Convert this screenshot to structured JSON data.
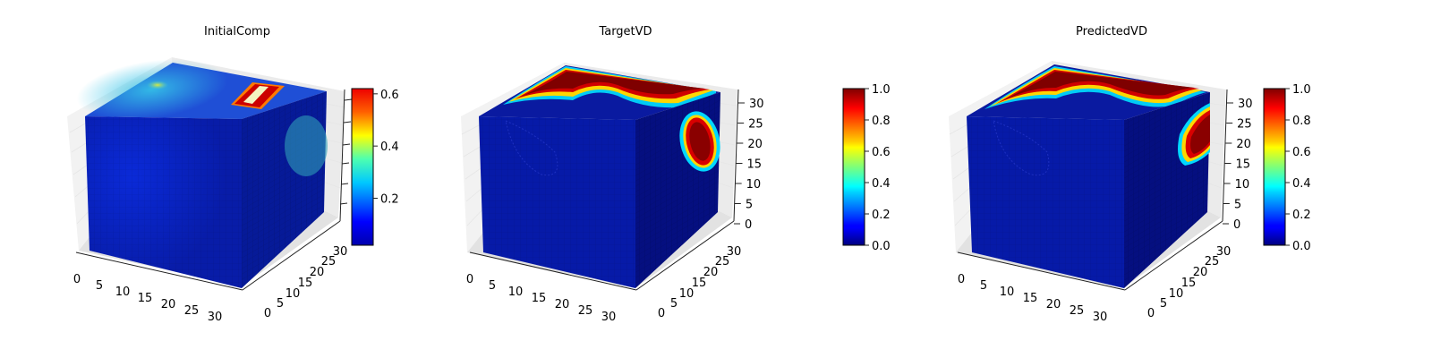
{
  "chart_data": [
    {
      "type": "voxel-3d",
      "title": "InitialComp",
      "x_ticks": [
        "0",
        "5",
        "10",
        "15",
        "20",
        "25",
        "30"
      ],
      "y_ticks": [
        "0",
        "5",
        "10",
        "15",
        "20",
        "25",
        "30"
      ],
      "z_ticks": [],
      "colormap": "jet",
      "colorbar": {
        "min": 0.02,
        "max": 0.62,
        "ticks": [
          "0.2",
          "0.4",
          "0.6"
        ],
        "tick_values": [
          0.2,
          0.4,
          0.6
        ]
      }
    },
    {
      "type": "voxel-3d",
      "title": "TargetVD",
      "x_ticks": [
        "0",
        "5",
        "10",
        "15",
        "20",
        "25",
        "30"
      ],
      "y_ticks": [
        "0",
        "5",
        "10",
        "15",
        "20",
        "25",
        "30"
      ],
      "z_ticks": [
        "0",
        "5",
        "10",
        "15",
        "20",
        "25",
        "30"
      ],
      "colormap": "jet",
      "colorbar": {
        "min": 0.0,
        "max": 1.0,
        "ticks": [
          "0.0",
          "0.2",
          "0.4",
          "0.6",
          "0.8",
          "1.0"
        ],
        "tick_values": [
          0.0,
          0.2,
          0.4,
          0.6,
          0.8,
          1.0
        ]
      }
    },
    {
      "type": "voxel-3d",
      "title": "PredictedVD",
      "x_ticks": [
        "0",
        "5",
        "10",
        "15",
        "20",
        "25",
        "30"
      ],
      "y_ticks": [
        "0",
        "5",
        "10",
        "15",
        "20",
        "25",
        "30"
      ],
      "z_ticks": [
        "0",
        "5",
        "10",
        "15",
        "20",
        "25",
        "30"
      ],
      "colormap": "jet",
      "colorbar": {
        "min": 0.0,
        "max": 1.0,
        "ticks": [
          "0.0",
          "0.2",
          "0.4",
          "0.6",
          "0.8",
          "1.0"
        ],
        "tick_values": [
          0.0,
          0.2,
          0.4,
          0.6,
          0.8,
          1.0
        ]
      }
    }
  ],
  "colors": {
    "jet_dark_red": "#7f0000",
    "jet_red": "#ff0000",
    "jet_yellow": "#ffff00",
    "jet_cyan": "#00ffff",
    "jet_blue": "#0000ff",
    "jet_dark_blue": "#00007f"
  }
}
